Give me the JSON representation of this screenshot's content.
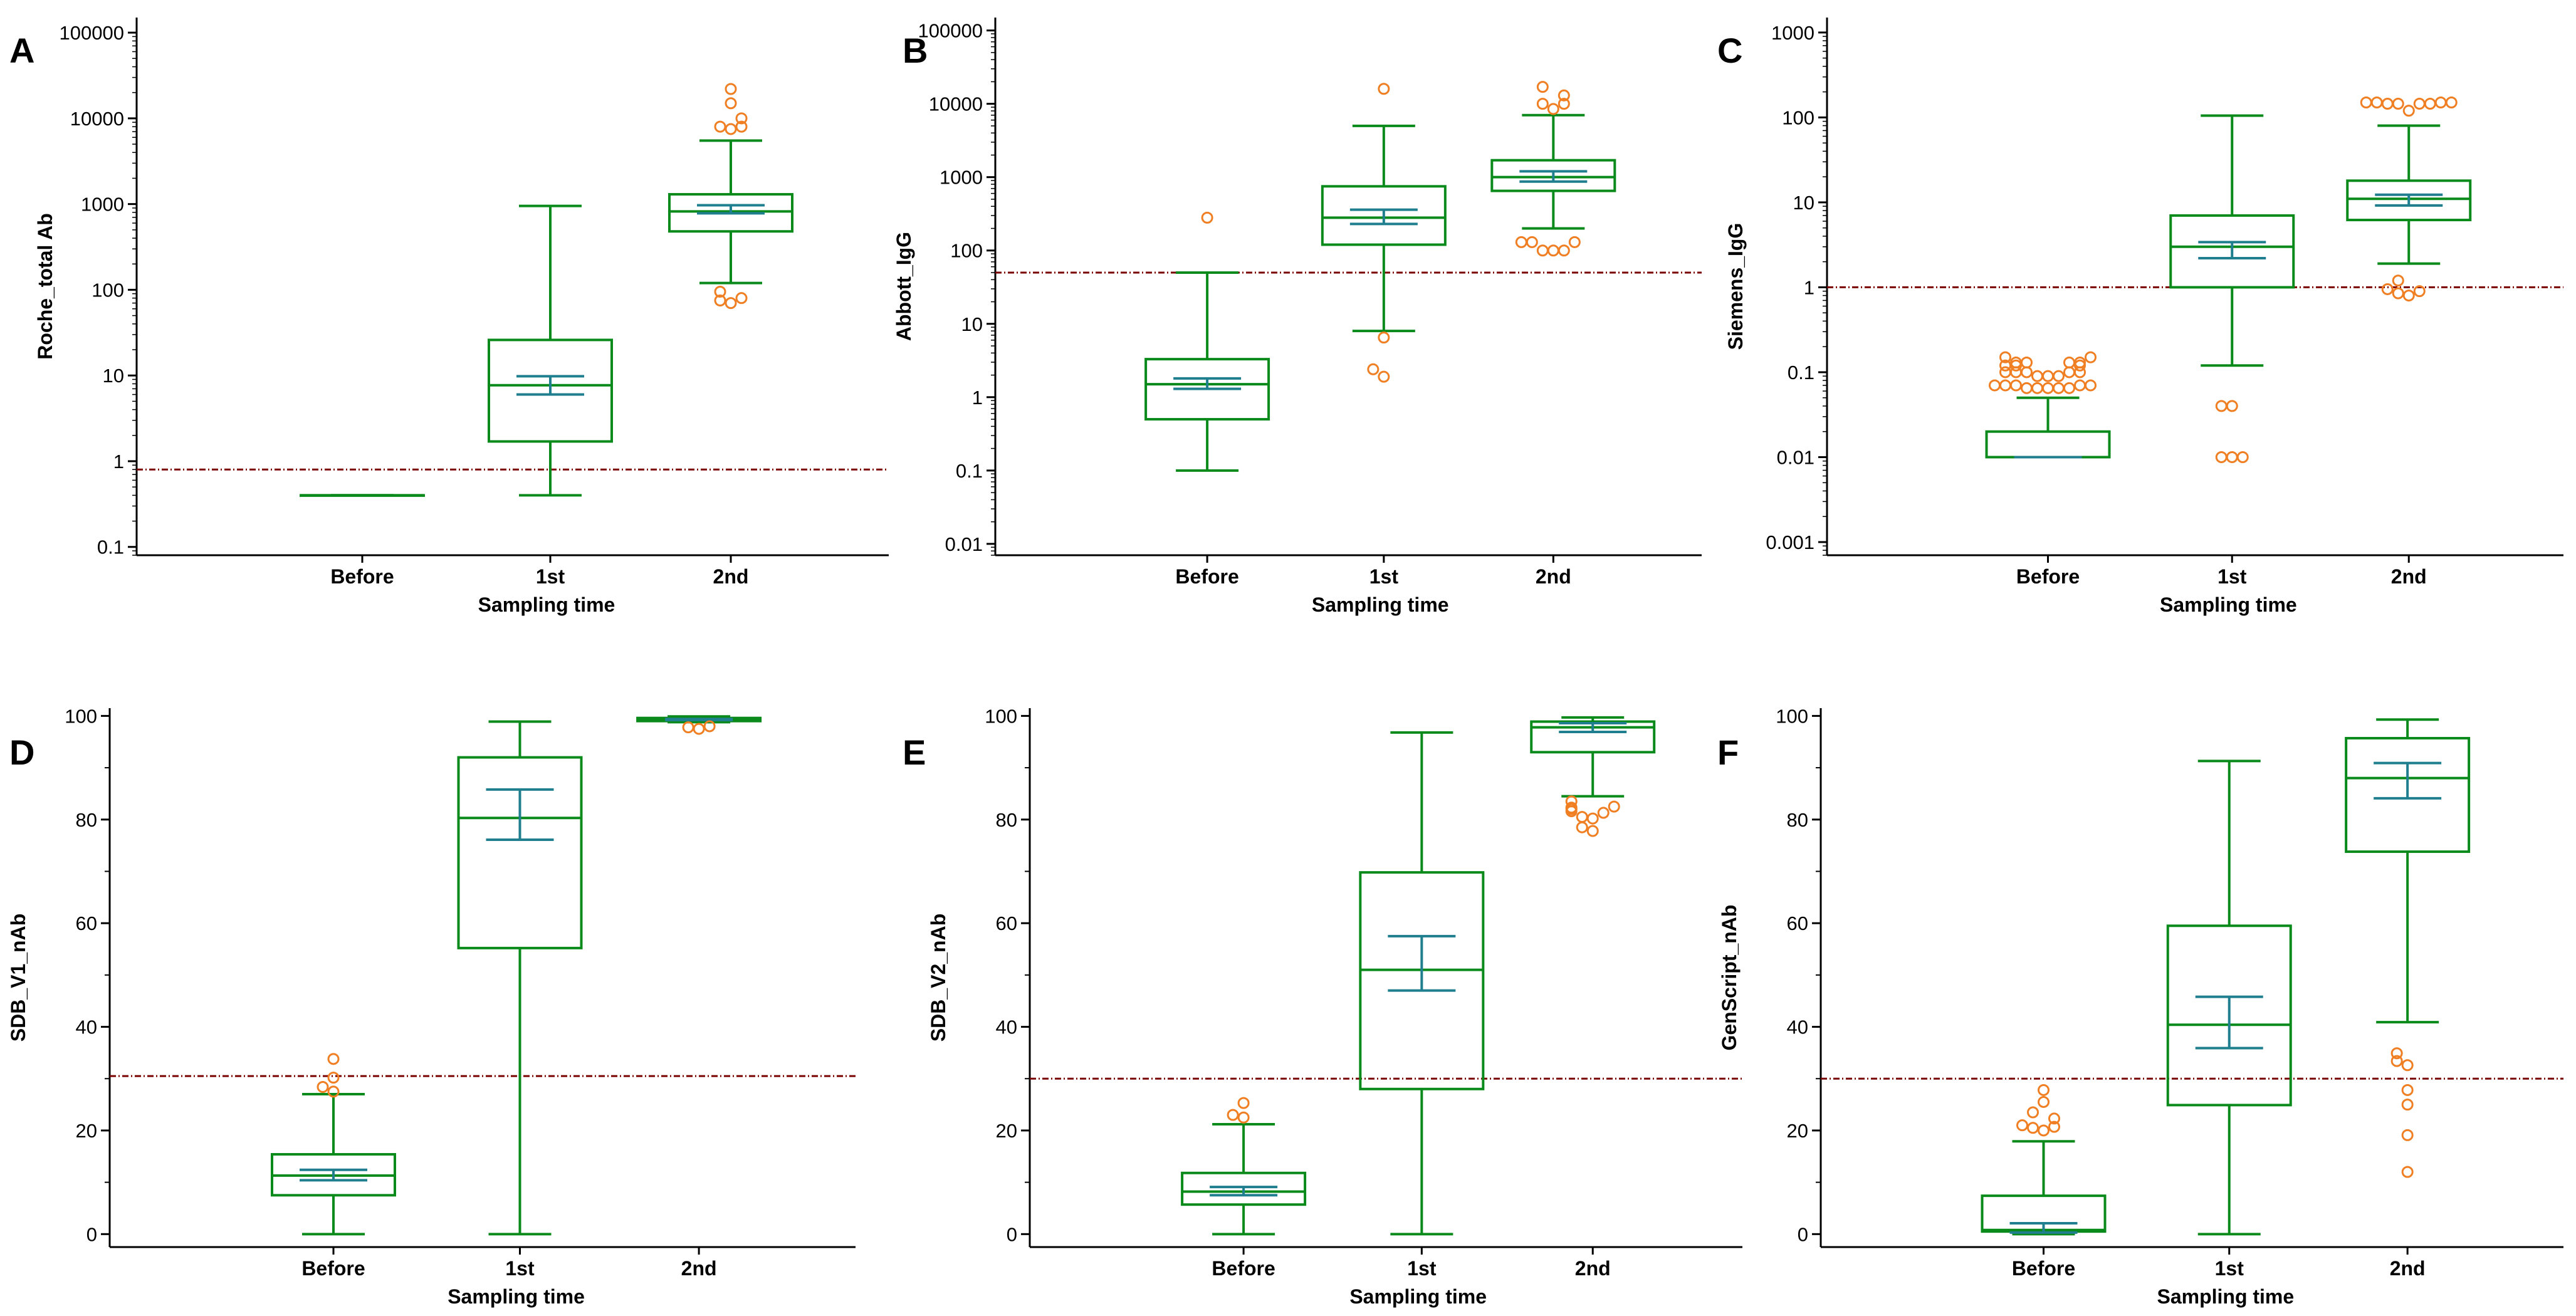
{
  "colors": {
    "box": "#0a8a1a",
    "ci": "#1f7f8f",
    "outlier": "#f07f23",
    "cutoff": "#7a0000",
    "axis": "#000000"
  },
  "chart_data": [
    {
      "panel_label": "A",
      "type": "box",
      "scale": "log",
      "ylim": [
        0.08,
        150000
      ],
      "yticks": [
        0.1,
        1,
        10,
        100,
        1000,
        10000,
        100000
      ],
      "ytick_labels": [
        "0.1",
        "1",
        "10",
        "100",
        "1000",
        "10000",
        "100000"
      ],
      "ylabel": "Roche_total Ab",
      "xlabel": "Sampling time",
      "categories": [
        "Before",
        "1st",
        "2nd"
      ],
      "cutoff": 0.8,
      "boxes": [
        {
          "category": "Before",
          "min": 0.4,
          "q1": 0.4,
          "median": 0.4,
          "q3": 0.4,
          "max": 0.4,
          "ci_low": null,
          "ci_high": null,
          "outliers": []
        },
        {
          "category": "1st",
          "min": 0.4,
          "q1": 1.7,
          "median": 7.7,
          "q3": 26,
          "max": 950,
          "ci_low": 6.0,
          "ci_high": 9.8,
          "outliers": []
        },
        {
          "category": "2nd",
          "min": 120,
          "q1": 480,
          "median": 820,
          "q3": 1300,
          "max": 5500,
          "ci_low": 780,
          "ci_high": 970,
          "outliers": [
            70,
            75,
            80,
            95,
            7500,
            8000,
            8000,
            10000,
            15000,
            22000
          ]
        }
      ]
    },
    {
      "panel_label": "B",
      "type": "box",
      "scale": "log",
      "ylim": [
        0.007,
        150000
      ],
      "yticks": [
        0.01,
        0.1,
        1,
        10,
        100,
        1000,
        10000,
        100000
      ],
      "ytick_labels": [
        "0.01",
        "0.1",
        "1",
        "10",
        "100",
        "1000",
        "10000",
        "100000"
      ],
      "ylabel": "Abbott_IgG",
      "xlabel": "Sampling time",
      "categories": [
        "Before",
        "1st",
        "2nd"
      ],
      "cutoff": 50,
      "boxes": [
        {
          "category": "Before",
          "min": 0.1,
          "q1": 0.5,
          "median": 1.5,
          "q3": 3.3,
          "max": 50,
          "ci_low": 1.3,
          "ci_high": 1.8,
          "outliers": [
            280
          ]
        },
        {
          "category": "1st",
          "min": 8,
          "q1": 120,
          "median": 280,
          "q3": 750,
          "max": 5000,
          "ci_low": 230,
          "ci_high": 360,
          "outliers": [
            1.9,
            2.4,
            6.5,
            16000
          ]
        },
        {
          "category": "2nd",
          "min": 200,
          "q1": 650,
          "median": 1000,
          "q3": 1700,
          "max": 7000,
          "ci_low": 870,
          "ci_high": 1200,
          "outliers": [
            100,
            100,
            100,
            130,
            130,
            130,
            8500,
            10000,
            10000,
            13000,
            17000
          ]
        }
      ]
    },
    {
      "panel_label": "C",
      "type": "box",
      "scale": "log",
      "ylim": [
        0.0007,
        1500
      ],
      "yticks": [
        0.001,
        0.01,
        0.1,
        1,
        10,
        100,
        1000
      ],
      "ytick_labels": [
        "0.001",
        "0.01",
        "0.1",
        "1",
        "10",
        "100",
        "1000"
      ],
      "ylabel": "Siemens_IgG",
      "xlabel": "Sampling time",
      "categories": [
        "Before",
        "1st",
        "2nd"
      ],
      "cutoff": 1,
      "boxes": [
        {
          "category": "Before",
          "min": 0.01,
          "q1": 0.01,
          "median": 0.01,
          "q3": 0.02,
          "max": 0.05,
          "ci_low": 0.01,
          "ci_high": 0.01,
          "outliers": [
            0.065,
            0.065,
            0.065,
            0.065,
            0.065,
            0.07,
            0.07,
            0.07,
            0.07,
            0.07,
            0.09,
            0.09,
            0.09,
            0.1,
            0.1,
            0.1,
            0.1,
            0.1,
            0.12,
            0.12,
            0.12,
            0.13,
            0.13,
            0.13,
            0.13,
            0.15,
            0.15
          ]
        },
        {
          "category": "1st",
          "min": 0.12,
          "q1": 1,
          "median": 3,
          "q3": 7,
          "max": 105,
          "ci_low": 2.2,
          "ci_high": 3.4,
          "outliers": [
            0.01,
            0.01,
            0.01,
            0.04,
            0.04
          ]
        },
        {
          "category": "2nd",
          "min": 1.9,
          "q1": 6.2,
          "median": 11,
          "q3": 18,
          "max": 80,
          "ci_low": 9.2,
          "ci_high": 12.3,
          "outliers": [
            0.8,
            0.85,
            0.9,
            0.95,
            1.2,
            120,
            145,
            145,
            145,
            145,
            150,
            150,
            150,
            150
          ]
        }
      ]
    },
    {
      "panel_label": "D",
      "type": "box",
      "scale": "linear",
      "ylim": [
        -2.5,
        101.5
      ],
      "yticks": [
        0,
        20,
        40,
        60,
        80,
        100
      ],
      "ytick_labels": [
        "0",
        "20",
        "40",
        "60",
        "80",
        "100"
      ],
      "ylabel": "SDB_V1_nAb",
      "xlabel": "Sampling time",
      "categories": [
        "Before",
        "1st",
        "2nd"
      ],
      "cutoff": 30.5,
      "boxes": [
        {
          "category": "Before",
          "min": 0,
          "q1": 7.5,
          "median": 11.3,
          "q3": 15.4,
          "max": 27,
          "ci_low": 10.4,
          "ci_high": 12.4,
          "outliers": [
            27.5,
            28.4,
            30.2,
            33.8
          ]
        },
        {
          "category": "1st",
          "min": 0,
          "q1": 55.2,
          "median": 80.3,
          "q3": 92,
          "max": 98.9,
          "ci_low": 76.1,
          "ci_high": 85.8,
          "outliers": []
        },
        {
          "category": "2nd",
          "min": 98.8,
          "q1": 99,
          "median": 99.3,
          "q3": 99.6,
          "max": 99.9,
          "ci_low": 99.2,
          "ci_high": 99.4,
          "outliers": [
            97.5,
            97.8,
            98.0
          ]
        }
      ]
    },
    {
      "panel_label": "E",
      "type": "box",
      "scale": "linear",
      "ylim": [
        -2.5,
        101.5
      ],
      "yticks": [
        0,
        20,
        40,
        60,
        80,
        100
      ],
      "ytick_labels": [
        "0",
        "20",
        "40",
        "60",
        "80",
        "100"
      ],
      "ylabel": "SDB_V2_nAb",
      "xlabel": "Sampling time",
      "categories": [
        "Before",
        "1st",
        "2nd"
      ],
      "cutoff": 30,
      "boxes": [
        {
          "category": "Before",
          "min": 0,
          "q1": 5.7,
          "median": 8.2,
          "q3": 11.8,
          "max": 21.2,
          "ci_low": 7.5,
          "ci_high": 9.1,
          "outliers": [
            22.5,
            23,
            25.3
          ]
        },
        {
          "category": "1st",
          "min": 0,
          "q1": 28,
          "median": 51,
          "q3": 69.8,
          "max": 96.8,
          "ci_low": 47,
          "ci_high": 57.5,
          "outliers": []
        },
        {
          "category": "2nd",
          "min": 84.5,
          "q1": 93,
          "median": 97.8,
          "q3": 98.9,
          "max": 99.7,
          "ci_low": 96.9,
          "ci_high": 98.6,
          "outliers": [
            77.8,
            78.5,
            80.2,
            80.5,
            81.3,
            81.6,
            82,
            82.3,
            82.5,
            83.5
          ]
        }
      ]
    },
    {
      "panel_label": "F",
      "type": "box",
      "scale": "linear",
      "ylim": [
        -2.5,
        101.5
      ],
      "yticks": [
        0,
        20,
        40,
        60,
        80,
        100
      ],
      "ytick_labels": [
        "0",
        "20",
        "40",
        "60",
        "80",
        "100"
      ],
      "ylabel": "GenScript_nAb",
      "xlabel": "Sampling time",
      "categories": [
        "Before",
        "1st",
        "2nd"
      ],
      "cutoff": 30,
      "boxes": [
        {
          "category": "Before",
          "min": 0,
          "q1": 0.5,
          "median": 0.8,
          "q3": 7.4,
          "max": 17.9,
          "ci_low": 0.3,
          "ci_high": 2.1,
          "outliers": [
            20,
            20.5,
            20.7,
            21,
            22.3,
            23.5,
            25.5,
            27.8
          ]
        },
        {
          "category": "1st",
          "min": 0,
          "q1": 24.9,
          "median": 40.4,
          "q3": 59.5,
          "max": 91.3,
          "ci_low": 35.9,
          "ci_high": 45.8,
          "outliers": []
        },
        {
          "category": "2nd",
          "min": 40.9,
          "q1": 73.8,
          "median": 88,
          "q3": 95.7,
          "max": 99.3,
          "ci_low": 84.1,
          "ci_high": 90.9,
          "outliers": [
            12,
            19.1,
            25,
            27.8,
            32.6,
            33.4,
            34.9
          ]
        }
      ]
    }
  ]
}
